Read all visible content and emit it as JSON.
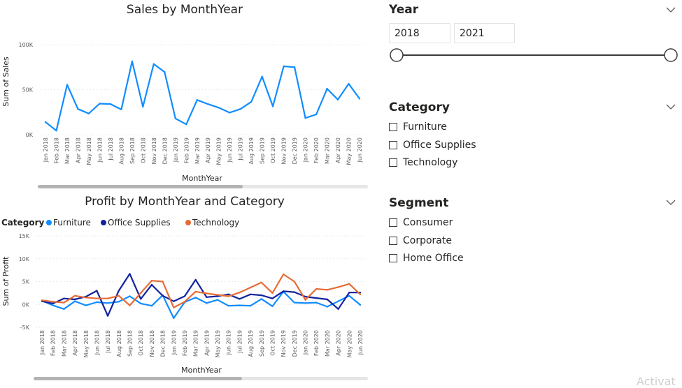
{
  "chart_data": [
    {
      "type": "line",
      "title": "Sales by MonthYear",
      "xlabel": "MonthYear",
      "ylabel": "Sum of Sales",
      "ylim": [
        0,
        100000
      ],
      "yticks": [
        {
          "value": 0,
          "label": "0K"
        },
        {
          "value": 50000,
          "label": "50K"
        },
        {
          "value": 100000,
          "label": "100K"
        }
      ],
      "categories": [
        "Jan 2018",
        "Feb 2018",
        "Mar 2018",
        "Apr 2018",
        "May 2018",
        "Jun 2018",
        "Jul 2018",
        "Aug 2018",
        "Sep 2018",
        "Oct 2018",
        "Nov 2018",
        "Dec 2018",
        "Jan 2019",
        "Feb 2019",
        "Mar 2019",
        "Apr 2019",
        "May 2019",
        "Jun 2019",
        "Jul 2019",
        "Aug 2019",
        "Sep 2019",
        "Oct 2019",
        "Nov 2019",
        "Dec 2019",
        "Jan 2020",
        "Feb 2020",
        "Mar 2020",
        "Apr 2020",
        "May 2020",
        "Jun 2020"
      ],
      "series": [
        {
          "values": [
            14000,
            4500,
            55500,
            28500,
            23500,
            34500,
            34000,
            28000,
            81500,
            31000,
            78500,
            69500,
            18000,
            11500,
            38500,
            34000,
            30000,
            24500,
            28500,
            36500,
            64500,
            31500,
            76000,
            75000,
            18500,
            22500,
            51000,
            39000,
            56500,
            40000
          ],
          "color": "#118dff"
        }
      ],
      "grid": true
    },
    {
      "type": "line",
      "title": "Profit by MonthYear and Category",
      "xlabel": "MonthYear",
      "ylabel": "Sum of Profit",
      "ylim": [
        -5000,
        15000
      ],
      "yticks": [
        {
          "value": -5000,
          "label": "-5K"
        },
        {
          "value": 0,
          "label": "0K"
        },
        {
          "value": 5000,
          "label": "5K"
        },
        {
          "value": 10000,
          "label": "10K"
        },
        {
          "value": 15000,
          "label": "15K"
        }
      ],
      "legend_title": "Category",
      "legend_position": "top-left",
      "categories": [
        "Jan 2018",
        "Feb 2018",
        "Mar 2018",
        "Apr 2018",
        "May 2018",
        "Jun 2018",
        "Jul 2018",
        "Aug 2018",
        "Sep 2018",
        "Oct 2018",
        "Nov 2018",
        "Dec 2018",
        "Jan 2019",
        "Feb 2019",
        "Mar 2019",
        "Apr 2019",
        "May 2019",
        "Jun 2019",
        "Jul 2019",
        "Aug 2019",
        "Sep 2019",
        "Oct 2019",
        "Nov 2019",
        "Dec 2019",
        "Jan 2020",
        "Feb 2020",
        "Mar 2020",
        "Apr 2020",
        "May 2020",
        "Jun 2020"
      ],
      "series": [
        {
          "name": "Furniture",
          "color": "#118dff",
          "values": [
            800,
            -200,
            -1000,
            700,
            -200,
            500,
            300,
            600,
            1800,
            200,
            -300,
            2000,
            -3000,
            500,
            1500,
            300,
            1000,
            -300,
            -200,
            -300,
            1200,
            -400,
            2800,
            400,
            300,
            400,
            -500,
            700,
            1900,
            -100
          ]
        },
        {
          "name": "Office Supplies",
          "color": "#12239e",
          "values": [
            700,
            200,
            1300,
            1100,
            1700,
            3000,
            -2500,
            3000,
            6700,
            1200,
            4300,
            1900,
            700,
            1800,
            5400,
            1600,
            1800,
            2200,
            1200,
            2200,
            2000,
            1300,
            2900,
            2700,
            1700,
            1400,
            1100,
            -1000,
            2600,
            2600
          ]
        },
        {
          "name": "Technology",
          "color": "#e66c37",
          "values": [
            900,
            600,
            400,
            1900,
            1500,
            1300,
            1300,
            1900,
            -200,
            2500,
            5200,
            5000,
            -700,
            600,
            2800,
            2400,
            2100,
            1800,
            2600,
            3700,
            4800,
            2500,
            6600,
            5000,
            1000,
            3400,
            3200,
            3800,
            4500,
            2200
          ]
        }
      ],
      "grid": true
    }
  ],
  "slicers": {
    "year": {
      "title": "Year",
      "start": "2018",
      "end": "2021"
    },
    "category": {
      "title": "Category",
      "options": [
        "Furniture",
        "Office Supplies",
        "Technology"
      ]
    },
    "segment": {
      "title": "Segment",
      "options": [
        "Consumer",
        "Corporate",
        "Home Office"
      ]
    }
  },
  "watermark": "Activat"
}
